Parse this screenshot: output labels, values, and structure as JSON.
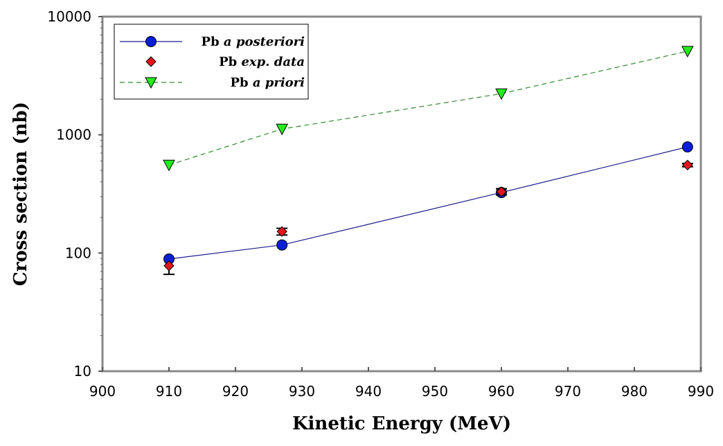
{
  "chart_data": {
    "type": "scatter",
    "x_scale": "linear",
    "y_scale": "log",
    "xlabel": "Kinetic Energy (MeV)",
    "ylabel": "Cross section (nb)",
    "xlim": [
      900,
      990
    ],
    "ylim": [
      10,
      10000
    ],
    "x_ticks": [
      900,
      910,
      920,
      930,
      940,
      950,
      960,
      970,
      980,
      990
    ],
    "y_ticks": [
      10,
      100,
      1000,
      10000
    ],
    "grid": false,
    "legend_position": "top-left",
    "series": [
      {
        "name": "Pb a posteriori",
        "label_prefix": "Pb",
        "label_rest": "a posteriori",
        "marker": "circle",
        "color": "#0a1ed6",
        "line_color": "#1a1a8c",
        "line_style": "solid",
        "x": [
          910,
          927,
          960,
          988
        ],
        "y": [
          89,
          117,
          325,
          790
        ]
      },
      {
        "name": "Pb exp. data",
        "label_prefix": "Pb",
        "label_rest": "exp. data",
        "marker": "diamond",
        "color": "#e8141c",
        "line_style": "none",
        "x": [
          910,
          927,
          960,
          988
        ],
        "y": [
          78,
          152,
          330,
          555
        ],
        "err": [
          [
            12,
            0
          ],
          [
            10,
            10
          ],
          [
            20,
            20
          ],
          [
            18,
            18
          ]
        ]
      },
      {
        "name": "Pb a priori",
        "label_prefix": "Pb",
        "label_rest": "a priori",
        "marker": "triangle-down",
        "color": "#22ee1c",
        "line_color": "#2e8b2e",
        "line_style": "dashed",
        "x": [
          910,
          927,
          960,
          988
        ],
        "y": [
          555,
          1120,
          2230,
          5100
        ]
      }
    ]
  }
}
